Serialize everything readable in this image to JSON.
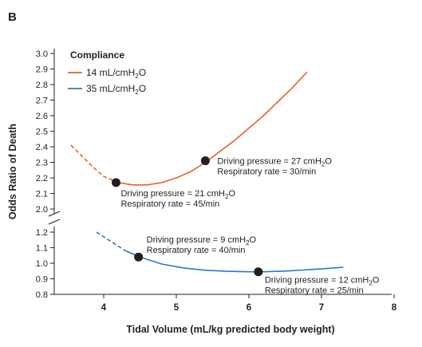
{
  "panel_label": "B",
  "chart_data": {
    "type": "line",
    "xlabel": "Tidal Volume (mL/kg predicted body weight)",
    "ylabel": "Odds Ratio of Death",
    "xlim": [
      3.5,
      8
    ],
    "x_ticks": [
      "4",
      "5",
      "6",
      "7",
      "8"
    ],
    "y_axis_break": true,
    "ylim_upper": [
      2.0,
      3.0
    ],
    "ylim_lower": [
      0.8,
      1.2
    ],
    "y_ticks_upper": [
      "3.0",
      "2.9",
      "2.8",
      "2.7",
      "2.6",
      "2.5",
      "2.4",
      "2.3",
      "2.2",
      "2.1",
      "2.0"
    ],
    "y_ticks_lower": [
      "1.2",
      "1.1",
      "1.0",
      "0.9",
      "0.8"
    ],
    "legend": {
      "title": "Compliance",
      "position": "top-left",
      "entries": [
        {
          "name": "14 mL/cmH",
          "sub": "2",
          "tail": "O",
          "color": "#e8612c"
        },
        {
          "name": "35 mL/cmH",
          "sub": "2",
          "tail": "O",
          "color": "#2c7bbf"
        }
      ]
    },
    "series": [
      {
        "name": "14 mL/cmH2O",
        "color": "#e8612c",
        "dashed_until_x": 4.2,
        "x": [
          3.55,
          3.7,
          3.85,
          4.0,
          4.2,
          4.4,
          4.6,
          4.8,
          5.0,
          5.2,
          5.4,
          5.6,
          5.8,
          6.0,
          6.2,
          6.4,
          6.6,
          6.8
        ],
        "y": [
          2.41,
          2.34,
          2.27,
          2.21,
          2.17,
          2.155,
          2.155,
          2.17,
          2.2,
          2.24,
          2.3,
          2.37,
          2.44,
          2.52,
          2.6,
          2.69,
          2.78,
          2.88
        ]
      },
      {
        "name": "35 mL/cmH2O",
        "color": "#2c7bbf",
        "dashed_until_x": 4.3,
        "x": [
          3.9,
          4.1,
          4.3,
          4.5,
          4.8,
          5.1,
          5.4,
          5.7,
          6.0,
          6.2,
          6.5,
          6.8,
          7.1,
          7.3
        ],
        "y": [
          1.2,
          1.14,
          1.08,
          1.04,
          0.995,
          0.97,
          0.955,
          0.948,
          0.945,
          0.945,
          0.95,
          0.958,
          0.967,
          0.975
        ]
      }
    ],
    "annotations": [
      {
        "x": 4.17,
        "y": 2.17,
        "line1": "Driving pressure = 21 cmH",
        "line1_sub": "2",
        "line1_tail": "O",
        "line2": "Respiratory rate = 45/min"
      },
      {
        "x": 5.4,
        "y": 2.31,
        "line1": "Driving pressure = 27 cmH",
        "line1_sub": "2",
        "line1_tail": "O",
        "line2": "Respiratory rate = 30/min"
      },
      {
        "x": 4.48,
        "y": 1.04,
        "line1": "Driving pressure = 9 cmH",
        "line1_sub": "2",
        "line1_tail": "O",
        "line2": "Respiratory rate = 40/min"
      },
      {
        "x": 6.13,
        "y": 0.945,
        "line1": "Driving pressure = 12 cmH",
        "line1_sub": "2",
        "line1_tail": "O",
        "line2": "Respiratory rate = 25/min"
      }
    ]
  }
}
